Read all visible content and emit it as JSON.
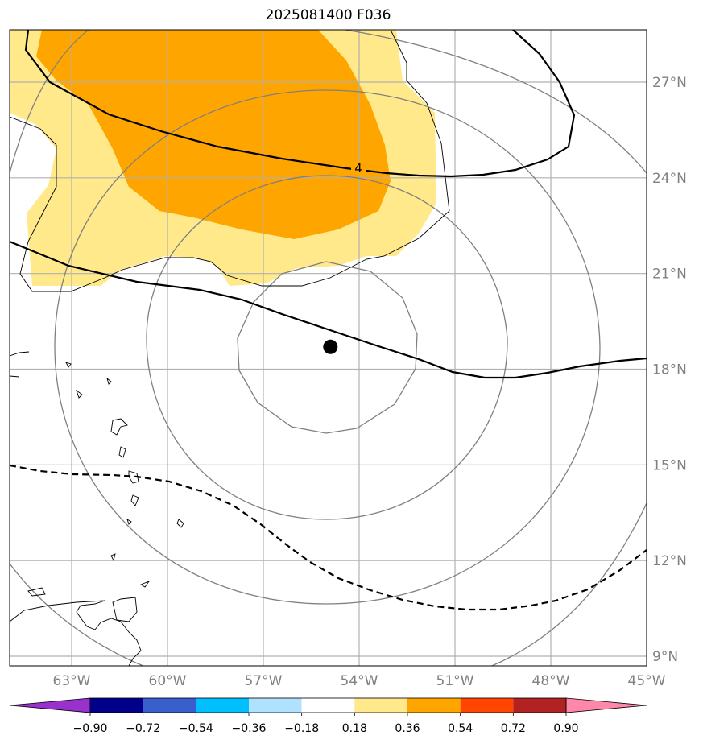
{
  "title": "2025081400 F036",
  "map": {
    "lon_range": [
      -65,
      -45
    ],
    "lat_range": [
      8.5,
      28.5
    ],
    "lat_ticks": [
      {
        "value": 9,
        "label": "9°N"
      },
      {
        "value": 12,
        "label": "12°N"
      },
      {
        "value": 15,
        "label": "15°N"
      },
      {
        "value": 18,
        "label": "18°N"
      },
      {
        "value": 21,
        "label": "21°N"
      },
      {
        "value": 24,
        "label": "24°N"
      },
      {
        "value": 27,
        "label": "27°N"
      }
    ],
    "lon_ticks": [
      {
        "value": -63,
        "label": "63°W"
      },
      {
        "value": -60,
        "label": "60°W"
      },
      {
        "value": -57,
        "label": "57°W"
      },
      {
        "value": -54,
        "label": "54°W"
      },
      {
        "value": -51,
        "label": "51°W"
      },
      {
        "value": -48,
        "label": "48°W"
      },
      {
        "value": -45,
        "label": "45°W"
      }
    ],
    "grid": true,
    "storm_center": {
      "lon": -54.9,
      "lat": 18.7
    },
    "contour_label": "4",
    "colors": {
      "grid": "#b0b0b0",
      "range_ring": "#808080",
      "shade_light": "#ffe98a",
      "shade_dark": "#ffa500",
      "contour": "#000000"
    }
  },
  "colorbar": {
    "colors": [
      "#9932cc",
      "#00008b",
      "#3a5fcd",
      "#00bfff",
      "#b0e2ff",
      "#ffffff",
      "#ffe98a",
      "#ffa500",
      "#ff4500",
      "#b22222",
      "#ff88aa"
    ],
    "ticks": [
      "−0.90",
      "−0.72",
      "−0.54",
      "−0.36",
      "−0.18",
      "0.18",
      "0.36",
      "0.54",
      "0.72",
      "0.90"
    ]
  }
}
